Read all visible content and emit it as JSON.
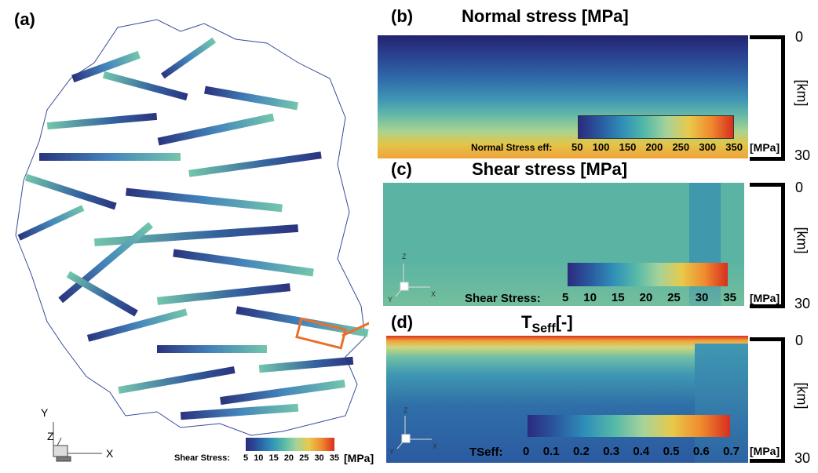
{
  "panels": {
    "a": {
      "label": "(a)",
      "colorbar": {
        "label": "Shear Stress:",
        "ticks": [
          "5",
          "10",
          "15",
          "20",
          "25",
          "30",
          "35"
        ],
        "unit": "[MPa]"
      },
      "axes": {
        "y": "Y",
        "z": "Z",
        "x": "X"
      }
    },
    "b": {
      "label": "(b)",
      "title": "Normal stress [MPa]",
      "colorbar": {
        "label": "Normal Stress eff:",
        "ticks": [
          "50",
          "100",
          "150",
          "200",
          "250",
          "300",
          "350"
        ],
        "unit": "[MPa]"
      },
      "depth": {
        "top": "0",
        "bottom": "30",
        "unit": "[km]"
      }
    },
    "c": {
      "label": "(c)",
      "title": "Shear stress [MPa]",
      "colorbar": {
        "label": "Shear Stress:",
        "ticks": [
          "5",
          "10",
          "15",
          "20",
          "25",
          "30",
          "35"
        ],
        "unit": "[MPa]"
      },
      "depth": {
        "top": "0",
        "bottom": "30",
        "unit": "[km]"
      },
      "axes": {
        "z": "Z",
        "x": "X",
        "y": "Y"
      }
    },
    "d": {
      "label": "(d)",
      "title_main": "T",
      "title_sub": "Seff",
      "title_suffix": "[-]",
      "colorbar": {
        "label": "TSeff:",
        "ticks": [
          "0",
          "0.1",
          "0.2",
          "0.3",
          "0.4",
          "0.5",
          "0.6",
          "0.7"
        ],
        "unit": "[MPa]"
      },
      "depth": {
        "top": "0",
        "bottom": "30",
        "unit": "[km]"
      },
      "axes": {
        "z": "Z",
        "x": "X",
        "y": "Y"
      }
    }
  },
  "colors": {
    "callout": "#e8702a",
    "scale_low": "#2b2a7e",
    "scale_mid": "#55b9a8",
    "scale_high": "#d72e1f"
  }
}
